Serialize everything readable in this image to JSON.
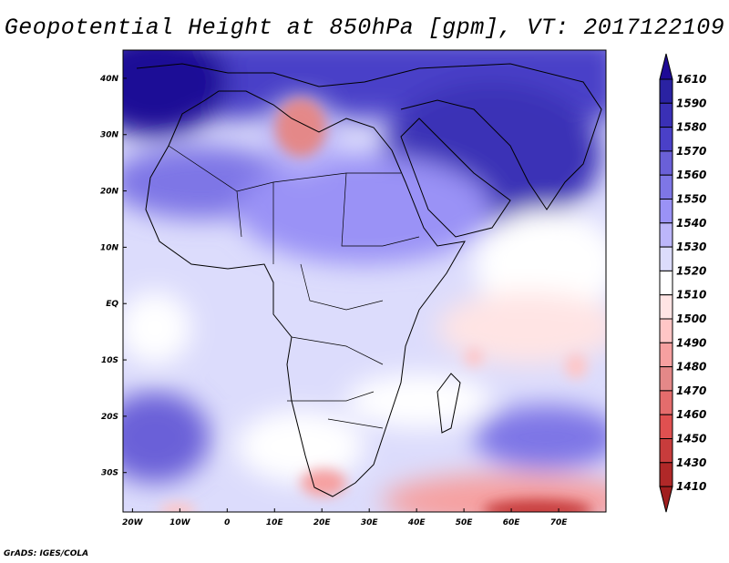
{
  "title": "Geopotential Height at 850hPa [gpm], VT: 2017122109",
  "credit": "GrADS: IGES/COLA",
  "map": {
    "lon_range": [
      -22,
      80
    ],
    "lat_range": [
      -37,
      45
    ],
    "lon_ticks": [
      {
        "v": -20,
        "label": "20W"
      },
      {
        "v": -10,
        "label": "10W"
      },
      {
        "v": 0,
        "label": "0"
      },
      {
        "v": 10,
        "label": "10E"
      },
      {
        "v": 20,
        "label": "20E"
      },
      {
        "v": 30,
        "label": "30E"
      },
      {
        "v": 40,
        "label": "40E"
      },
      {
        "v": 50,
        "label": "50E"
      },
      {
        "v": 60,
        "label": "60E"
      },
      {
        "v": 70,
        "label": "70E"
      }
    ],
    "lat_ticks": [
      {
        "v": 40,
        "label": "40N"
      },
      {
        "v": 30,
        "label": "30N"
      },
      {
        "v": 20,
        "label": "20N"
      },
      {
        "v": 10,
        "label": "10N"
      },
      {
        "v": 0,
        "label": "EQ"
      },
      {
        "v": -10,
        "label": "10S"
      },
      {
        "v": -20,
        "label": "20S"
      },
      {
        "v": -30,
        "label": "30S"
      }
    ]
  },
  "colorbar": {
    "labels": [
      "1610",
      "1590",
      "1580",
      "1570",
      "1560",
      "1550",
      "1540",
      "1530",
      "1520",
      "1510",
      "1500",
      "1490",
      "1480",
      "1470",
      "1460",
      "1450",
      "1430",
      "1410"
    ],
    "colors": [
      "#1e0a96",
      "#2a22a2",
      "#3a30b6",
      "#4a40c8",
      "#6a60d8",
      "#7e76e6",
      "#9a92f6",
      "#bcb6fa",
      "#dcdcfc",
      "#ffffff",
      "#ffe4e4",
      "#ffc6c6",
      "#f6a0a0",
      "#e48888",
      "#e46c6c",
      "#e05050",
      "#c83c3c",
      "#b02828",
      "#a01e1e"
    ]
  }
}
